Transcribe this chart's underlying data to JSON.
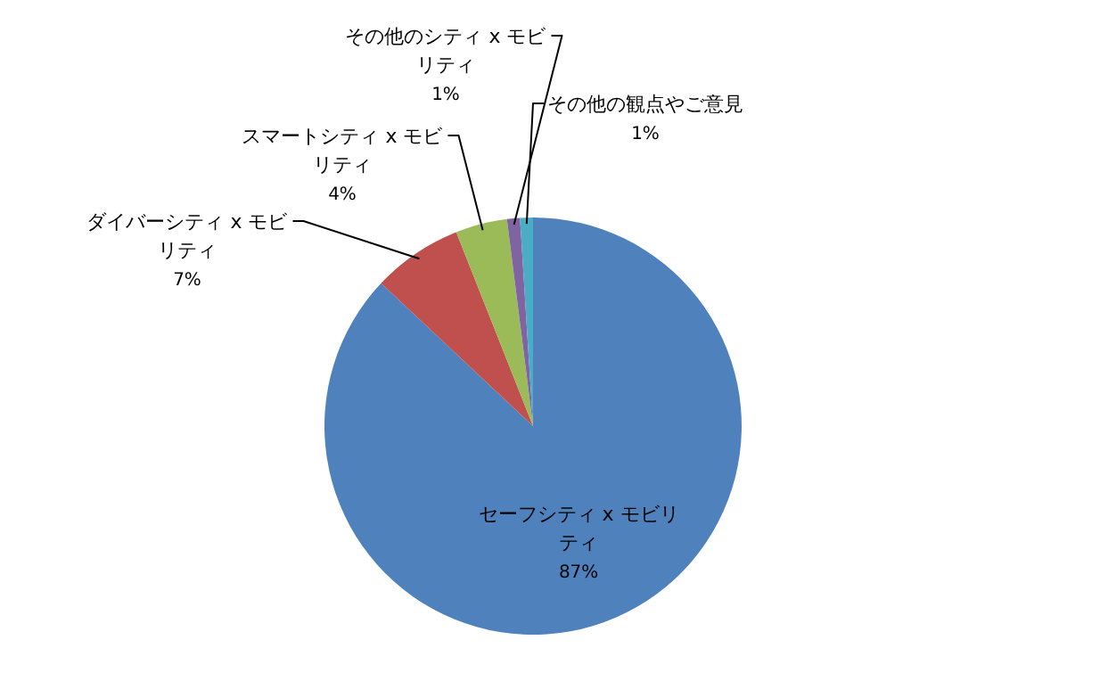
{
  "chart_data": {
    "type": "pie",
    "categories": [
      "セーフシティ x モビリティ",
      "ダイバーシティ x モビリティ",
      "スマートシティ x モビリティ",
      "その他のシティ x モビリティ",
      "その他の観点やご意見"
    ],
    "values": [
      87,
      7,
      4,
      1,
      1
    ],
    "colors": [
      "#4f81bd",
      "#c0504d",
      "#9bbb59",
      "#8064a2",
      "#4bacc6"
    ],
    "value_labels": [
      "87%",
      "7%",
      "4%",
      "1%",
      "1%"
    ]
  }
}
